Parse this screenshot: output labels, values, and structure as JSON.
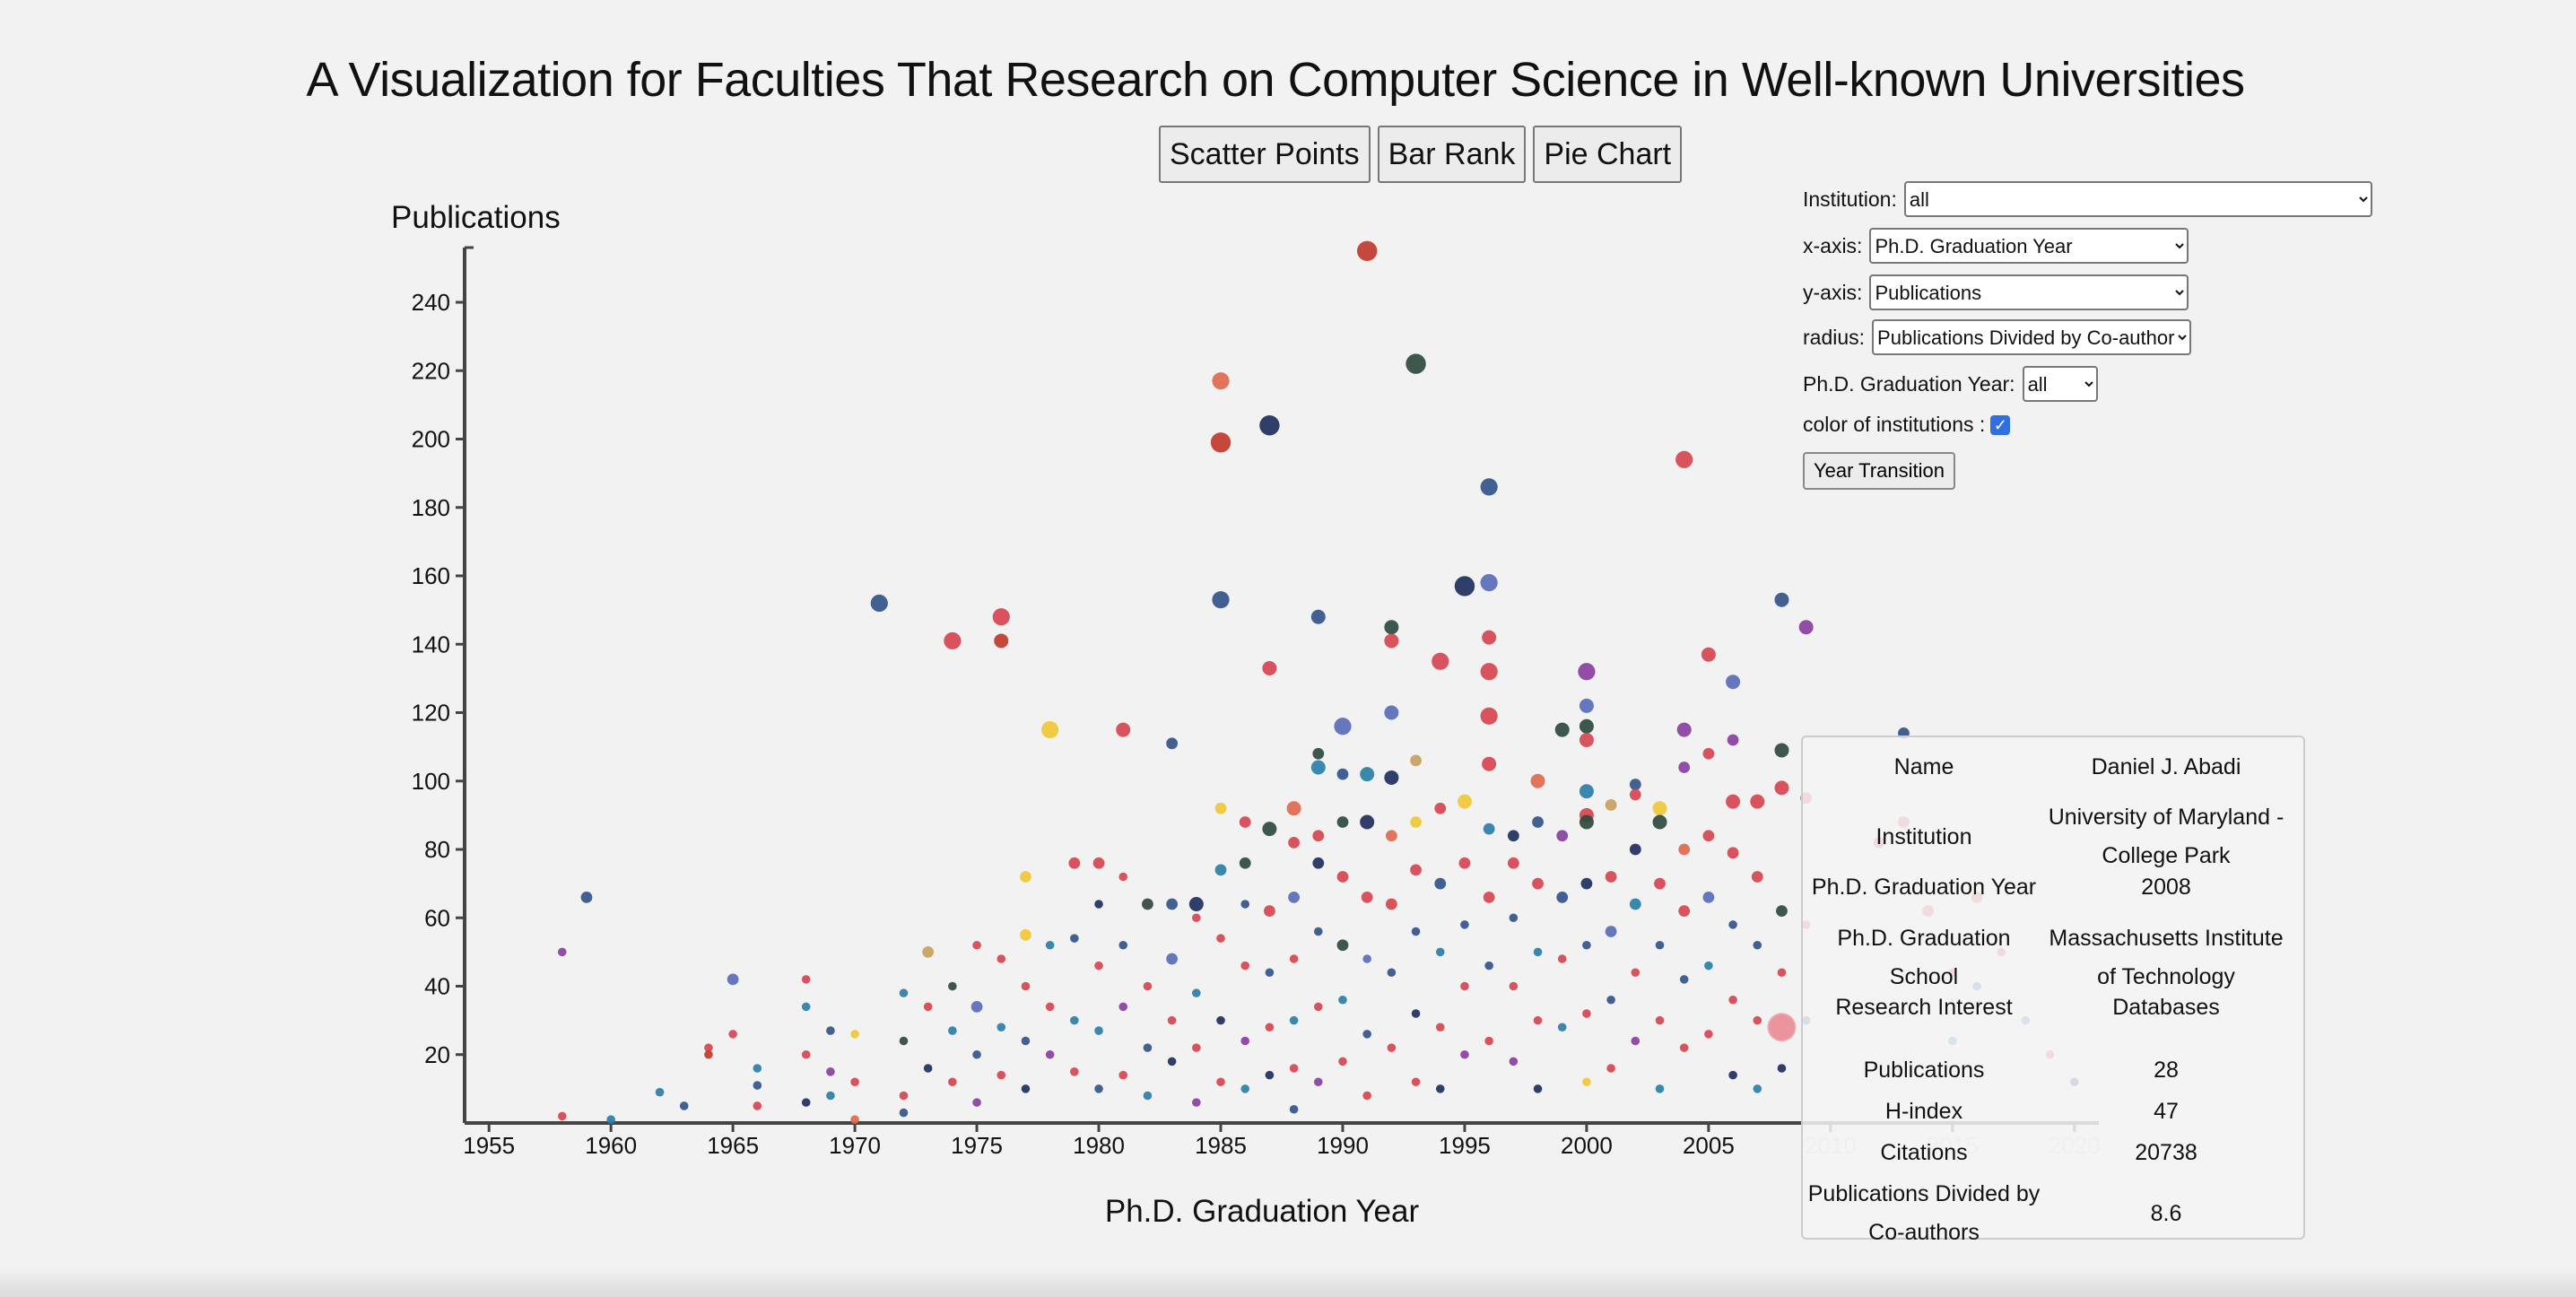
{
  "page": {
    "title": "A Visualization for Faculties That Research on Computer Science in Well-known Universities"
  },
  "nav": {
    "scatter_label": "Scatter Points",
    "bar_label": "Bar Rank",
    "pie_label": "Pie Chart"
  },
  "controls": {
    "institution_label": "Institution:",
    "institution_value": "all",
    "xaxis_label": "x-axis:",
    "xaxis_value": "Ph.D. Graduation Year",
    "yaxis_label": "y-axis:",
    "yaxis_value": "Publications",
    "radius_label": "radius:",
    "radius_value": "Publications Divided by Co-authors",
    "year_label": "Ph.D. Graduation Year:",
    "year_value": "all",
    "color_label": "color of institutions :",
    "color_checked": true,
    "transition_label": "Year Transition"
  },
  "tooltip": {
    "rows": [
      {
        "key": "Name",
        "value": "Daniel J. Abadi"
      },
      {
        "key": "Institution",
        "value": "University of Maryland - College Park"
      },
      {
        "key": "Ph.D. Graduation Year",
        "value": "2008"
      },
      {
        "key": "Ph.D. Graduation School",
        "value": "Massachusetts Institute of Technology"
      },
      {
        "key": "Research Interest",
        "value": "Databases"
      },
      {
        "key": "Publications",
        "value": "28"
      },
      {
        "key": "H-index",
        "value": "47"
      },
      {
        "key": "Citations",
        "value": "20738"
      },
      {
        "key": "Publications Divided by Co-authors",
        "value": "8.6"
      }
    ]
  },
  "chart_data": {
    "type": "scatter",
    "title": "",
    "xlabel": "Ph.D. Graduation Year",
    "ylabel": "Publications",
    "xlim": [
      1954,
      2021
    ],
    "ylim": [
      0,
      256
    ],
    "x_ticks": [
      "1955",
      "1960",
      "1965",
      "1970",
      "1975",
      "1980",
      "1985",
      "1990",
      "1995",
      "2000",
      "2005",
      "2010",
      "2015",
      "2020"
    ],
    "y_ticks": [
      "20",
      "40",
      "60",
      "80",
      "100",
      "120",
      "140",
      "160",
      "180",
      "200",
      "220",
      "240"
    ],
    "palette": [
      "#d64550",
      "#34548a",
      "#2a7fa8",
      "#1f2f5e",
      "#8a3fa0",
      "#f0c83a",
      "#e06a4e",
      "#2e4a3e",
      "#5a6eb8",
      "#c0392b",
      "#c8a062"
    ],
    "highlighted": {
      "x": 2008,
      "y": 28
    },
    "points": [
      [
        1958,
        2,
        3,
        0
      ],
      [
        1958,
        50,
        3,
        4
      ],
      [
        1959,
        66,
        4,
        1
      ],
      [
        1960,
        1,
        3,
        2
      ],
      [
        1962,
        9,
        3,
        2
      ],
      [
        1963,
        5,
        3,
        1
      ],
      [
        1964,
        22,
        3,
        0
      ],
      [
        1964,
        20,
        3,
        9
      ],
      [
        1965,
        26,
        3,
        0
      ],
      [
        1965,
        42,
        4,
        8
      ],
      [
        1966,
        16,
        3,
        2
      ],
      [
        1966,
        11,
        3,
        1
      ],
      [
        1966,
        5,
        3,
        0
      ],
      [
        1968,
        42,
        3,
        0
      ],
      [
        1968,
        34,
        3,
        2
      ],
      [
        1968,
        20,
        3,
        0
      ],
      [
        1968,
        6,
        3,
        3
      ],
      [
        1969,
        27,
        3,
        1
      ],
      [
        1969,
        15,
        3,
        4
      ],
      [
        1969,
        8,
        3,
        2
      ],
      [
        1970,
        26,
        3,
        5
      ],
      [
        1970,
        12,
        3,
        0
      ],
      [
        1970,
        1,
        3,
        6
      ],
      [
        1971,
        152,
        6,
        1
      ],
      [
        1972,
        38,
        3,
        2
      ],
      [
        1972,
        24,
        3,
        7
      ],
      [
        1972,
        8,
        3,
        0
      ],
      [
        1972,
        3,
        3,
        1
      ],
      [
        1973,
        50,
        4,
        10
      ],
      [
        1973,
        34,
        3,
        0
      ],
      [
        1973,
        16,
        3,
        3
      ],
      [
        1974,
        141,
        6,
        0
      ],
      [
        1974,
        40,
        3,
        7
      ],
      [
        1974,
        27,
        3,
        2
      ],
      [
        1974,
        12,
        3,
        0
      ],
      [
        1975,
        52,
        3,
        0
      ],
      [
        1975,
        34,
        4,
        8
      ],
      [
        1975,
        20,
        3,
        1
      ],
      [
        1975,
        6,
        3,
        4
      ],
      [
        1976,
        148,
        6,
        0
      ],
      [
        1976,
        141,
        5,
        9
      ],
      [
        1976,
        48,
        3,
        0
      ],
      [
        1976,
        28,
        3,
        2
      ],
      [
        1976,
        14,
        3,
        0
      ],
      [
        1977,
        72,
        4,
        5
      ],
      [
        1977,
        55,
        4,
        5
      ],
      [
        1977,
        40,
        3,
        0
      ],
      [
        1977,
        24,
        3,
        1
      ],
      [
        1977,
        10,
        3,
        3
      ],
      [
        1978,
        115,
        6,
        5
      ],
      [
        1978,
        52,
        3,
        2
      ],
      [
        1978,
        34,
        3,
        0
      ],
      [
        1978,
        20,
        3,
        4
      ],
      [
        1979,
        76,
        4,
        0
      ],
      [
        1979,
        54,
        3,
        1
      ],
      [
        1979,
        30,
        3,
        2
      ],
      [
        1979,
        15,
        3,
        0
      ],
      [
        1980,
        76,
        4,
        0
      ],
      [
        1980,
        64,
        3,
        3
      ],
      [
        1980,
        46,
        3,
        0
      ],
      [
        1980,
        27,
        3,
        2
      ],
      [
        1980,
        10,
        3,
        1
      ],
      [
        1981,
        115,
        5,
        0
      ],
      [
        1981,
        72,
        3,
        0
      ],
      [
        1981,
        52,
        3,
        1
      ],
      [
        1981,
        34,
        3,
        4
      ],
      [
        1981,
        14,
        3,
        0
      ],
      [
        1982,
        64,
        4,
        7
      ],
      [
        1982,
        40,
        3,
        0
      ],
      [
        1982,
        22,
        3,
        1
      ],
      [
        1982,
        8,
        3,
        2
      ],
      [
        1983,
        111,
        4,
        1
      ],
      [
        1983,
        64,
        4,
        1
      ],
      [
        1983,
        48,
        4,
        8
      ],
      [
        1983,
        30,
        3,
        0
      ],
      [
        1983,
        18,
        3,
        3
      ],
      [
        1984,
        64,
        5,
        3
      ],
      [
        1984,
        60,
        3,
        0
      ],
      [
        1984,
        38,
        3,
        2
      ],
      [
        1984,
        22,
        3,
        0
      ],
      [
        1984,
        6,
        3,
        4
      ],
      [
        1985,
        217,
        6,
        6
      ],
      [
        1985,
        199,
        7,
        9
      ],
      [
        1985,
        153,
        6,
        1
      ],
      [
        1985,
        92,
        4,
        5
      ],
      [
        1985,
        74,
        4,
        2
      ],
      [
        1985,
        54,
        3,
        0
      ],
      [
        1985,
        30,
        3,
        3
      ],
      [
        1985,
        12,
        3,
        0
      ],
      [
        1986,
        88,
        4,
        0
      ],
      [
        1986,
        76,
        4,
        7
      ],
      [
        1986,
        64,
        3,
        1
      ],
      [
        1986,
        46,
        3,
        0
      ],
      [
        1986,
        24,
        3,
        4
      ],
      [
        1986,
        10,
        3,
        2
      ],
      [
        1987,
        204,
        7,
        3
      ],
      [
        1987,
        133,
        5,
        0
      ],
      [
        1987,
        86,
        5,
        7
      ],
      [
        1987,
        62,
        4,
        0
      ],
      [
        1987,
        44,
        3,
        1
      ],
      [
        1987,
        28,
        3,
        0
      ],
      [
        1987,
        14,
        3,
        3
      ],
      [
        1988,
        92,
        5,
        6
      ],
      [
        1988,
        82,
        4,
        0
      ],
      [
        1988,
        66,
        4,
        8
      ],
      [
        1988,
        48,
        3,
        0
      ],
      [
        1988,
        30,
        3,
        2
      ],
      [
        1988,
        16,
        3,
        0
      ],
      [
        1988,
        4,
        3,
        1
      ],
      [
        1989,
        148,
        5,
        1
      ],
      [
        1989,
        108,
        4,
        7
      ],
      [
        1989,
        104,
        5,
        2
      ],
      [
        1989,
        84,
        4,
        0
      ],
      [
        1989,
        76,
        4,
        3
      ],
      [
        1989,
        56,
        3,
        1
      ],
      [
        1989,
        34,
        3,
        0
      ],
      [
        1989,
        12,
        3,
        4
      ],
      [
        1990,
        116,
        6,
        8
      ],
      [
        1990,
        102,
        4,
        1
      ],
      [
        1990,
        88,
        4,
        7
      ],
      [
        1990,
        72,
        4,
        0
      ],
      [
        1990,
        52,
        4,
        7
      ],
      [
        1990,
        36,
        3,
        2
      ],
      [
        1990,
        18,
        3,
        0
      ],
      [
        1991,
        255,
        7,
        9
      ],
      [
        1991,
        102,
        5,
        2
      ],
      [
        1991,
        88,
        5,
        3
      ],
      [
        1991,
        66,
        4,
        0
      ],
      [
        1991,
        48,
        3,
        8
      ],
      [
        1991,
        26,
        3,
        1
      ],
      [
        1991,
        8,
        3,
        0
      ],
      [
        1992,
        145,
        5,
        7
      ],
      [
        1992,
        141,
        5,
        0
      ],
      [
        1992,
        120,
        5,
        8
      ],
      [
        1992,
        101,
        5,
        3
      ],
      [
        1992,
        84,
        4,
        6
      ],
      [
        1992,
        64,
        4,
        0
      ],
      [
        1992,
        44,
        3,
        1
      ],
      [
        1992,
        22,
        3,
        0
      ],
      [
        1993,
        222,
        7,
        7
      ],
      [
        1993,
        106,
        4,
        10
      ],
      [
        1993,
        88,
        4,
        5
      ],
      [
        1993,
        74,
        4,
        0
      ],
      [
        1993,
        56,
        3,
        1
      ],
      [
        1993,
        32,
        3,
        3
      ],
      [
        1993,
        12,
        3,
        0
      ],
      [
        1994,
        135,
        6,
        0
      ],
      [
        1994,
        92,
        4,
        0
      ],
      [
        1994,
        70,
        4,
        1
      ],
      [
        1994,
        50,
        3,
        2
      ],
      [
        1994,
        28,
        3,
        0
      ],
      [
        1994,
        10,
        3,
        3
      ],
      [
        1995,
        157,
        7,
        3
      ],
      [
        1995,
        94,
        5,
        5
      ],
      [
        1995,
        76,
        4,
        0
      ],
      [
        1995,
        58,
        3,
        1
      ],
      [
        1995,
        40,
        3,
        0
      ],
      [
        1995,
        20,
        3,
        4
      ],
      [
        1996,
        186,
        6,
        1
      ],
      [
        1996,
        158,
        6,
        8
      ],
      [
        1996,
        142,
        5,
        0
      ],
      [
        1996,
        132,
        6,
        0
      ],
      [
        1996,
        119,
        6,
        0
      ],
      [
        1996,
        105,
        5,
        0
      ],
      [
        1996,
        86,
        4,
        2
      ],
      [
        1996,
        66,
        4,
        0
      ],
      [
        1996,
        46,
        3,
        1
      ],
      [
        1996,
        24,
        3,
        0
      ],
      [
        1997,
        84,
        4,
        3
      ],
      [
        1997,
        76,
        4,
        0
      ],
      [
        1997,
        60,
        3,
        1
      ],
      [
        1997,
        40,
        3,
        0
      ],
      [
        1997,
        18,
        3,
        4
      ],
      [
        1998,
        100,
        5,
        6
      ],
      [
        1998,
        88,
        4,
        1
      ],
      [
        1998,
        70,
        4,
        0
      ],
      [
        1998,
        50,
        3,
        2
      ],
      [
        1998,
        30,
        3,
        0
      ],
      [
        1998,
        10,
        3,
        3
      ],
      [
        1999,
        115,
        5,
        7
      ],
      [
        1999,
        84,
        4,
        4
      ],
      [
        1999,
        66,
        4,
        1
      ],
      [
        1999,
        48,
        3,
        0
      ],
      [
        1999,
        28,
        3,
        2
      ],
      [
        2000,
        132,
        6,
        4
      ],
      [
        2000,
        122,
        5,
        8
      ],
      [
        2000,
        116,
        5,
        7
      ],
      [
        2000,
        112,
        5,
        0
      ],
      [
        2000,
        97,
        5,
        2
      ],
      [
        2000,
        90,
        5,
        0
      ],
      [
        2000,
        88,
        5,
        7
      ],
      [
        2000,
        70,
        4,
        3
      ],
      [
        2000,
        52,
        3,
        1
      ],
      [
        2000,
        32,
        3,
        0
      ],
      [
        2000,
        12,
        3,
        5
      ],
      [
        2001,
        93,
        4,
        10
      ],
      [
        2001,
        72,
        4,
        0
      ],
      [
        2001,
        56,
        4,
        8
      ],
      [
        2001,
        36,
        3,
        1
      ],
      [
        2001,
        16,
        3,
        0
      ],
      [
        2002,
        99,
        4,
        1
      ],
      [
        2002,
        96,
        4,
        0
      ],
      [
        2002,
        80,
        4,
        3
      ],
      [
        2002,
        64,
        4,
        2
      ],
      [
        2002,
        44,
        3,
        0
      ],
      [
        2002,
        24,
        3,
        4
      ],
      [
        2003,
        92,
        5,
        5
      ],
      [
        2003,
        88,
        5,
        7
      ],
      [
        2003,
        70,
        4,
        0
      ],
      [
        2003,
        52,
        3,
        1
      ],
      [
        2003,
        30,
        3,
        0
      ],
      [
        2003,
        10,
        3,
        2
      ],
      [
        2004,
        194,
        6,
        0
      ],
      [
        2004,
        115,
        5,
        4
      ],
      [
        2004,
        104,
        4,
        4
      ],
      [
        2004,
        80,
        4,
        6
      ],
      [
        2004,
        62,
        4,
        0
      ],
      [
        2004,
        42,
        3,
        1
      ],
      [
        2004,
        22,
        3,
        0
      ],
      [
        2005,
        137,
        5,
        0
      ],
      [
        2005,
        108,
        4,
        0
      ],
      [
        2005,
        84,
        4,
        0
      ],
      [
        2005,
        66,
        4,
        8
      ],
      [
        2005,
        46,
        3,
        2
      ],
      [
        2005,
        26,
        3,
        0
      ],
      [
        2006,
        129,
        5,
        8
      ],
      [
        2006,
        112,
        4,
        4
      ],
      [
        2006,
        94,
        5,
        0
      ],
      [
        2006,
        79,
        4,
        0
      ],
      [
        2006,
        58,
        3,
        1
      ],
      [
        2006,
        36,
        3,
        0
      ],
      [
        2006,
        14,
        3,
        3
      ],
      [
        2007,
        94,
        5,
        0
      ],
      [
        2007,
        72,
        4,
        0
      ],
      [
        2007,
        52,
        3,
        1
      ],
      [
        2007,
        30,
        3,
        0
      ],
      [
        2007,
        10,
        3,
        2
      ],
      [
        2008,
        153,
        5,
        1
      ],
      [
        2008,
        109,
        5,
        7
      ],
      [
        2008,
        98,
        5,
        0
      ],
      [
        2008,
        62,
        4,
        7
      ],
      [
        2008,
        44,
        3,
        0
      ],
      [
        2008,
        28,
        9,
        0
      ],
      [
        2008,
        16,
        3,
        3
      ],
      [
        2009,
        145,
        5,
        4
      ],
      [
        2009,
        95,
        4,
        0
      ],
      [
        2009,
        58,
        3,
        0
      ],
      [
        2009,
        30,
        3,
        1
      ],
      [
        2012,
        82,
        4,
        0
      ],
      [
        2013,
        114,
        4,
        1
      ],
      [
        2013,
        88,
        4,
        0
      ],
      [
        2014,
        62,
        4,
        0
      ],
      [
        2015,
        44,
        3,
        0
      ],
      [
        2015,
        24,
        3,
        2
      ],
      [
        2016,
        66,
        4,
        0
      ],
      [
        2016,
        40,
        3,
        1
      ],
      [
        2017,
        50,
        3,
        0
      ],
      [
        2018,
        30,
        3,
        2
      ],
      [
        2019,
        20,
        3,
        0
      ],
      [
        2020,
        12,
        3,
        3
      ]
    ]
  }
}
